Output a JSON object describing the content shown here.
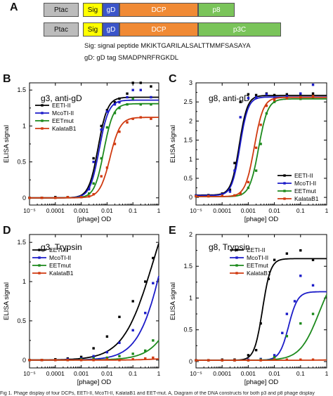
{
  "panelA": {
    "letter": "A",
    "row1": {
      "promoter": "Ptac",
      "sig": "Sig",
      "gd": "gD",
      "dcp": "DCP",
      "fusion": "p8"
    },
    "row2": {
      "promoter": "Ptac",
      "sig": "Sig",
      "gd": "gD",
      "dcp": "DCP",
      "fusion": "p3C"
    },
    "sig_note": "Sig: signal peptide MKIKTGARILALSALTTMMFSASAYA",
    "gd_note": "gD: gD tag SMADPNRFRGKDL",
    "colors": {
      "promoter": "#bcbcbc",
      "sig": "#ffff00",
      "gd": "#3b55c9",
      "dcp": "#f08a35",
      "fusion": "#7ac45a"
    }
  },
  "caption": "Fig 1. Phage display of four DCPs, EETI-II, McoTI-II, KalataB1 and EET-mut. A, Diagram of the DNA constructs for both p3 and p8 phage display",
  "series_colors": {
    "EETI-II": "#000000",
    "McoTI-II": "#1c1cc8",
    "EETmut": "#1d8a1d",
    "KalataB1": "#d03a10"
  },
  "chart_data": [
    {
      "letter": "B",
      "type": "scatter",
      "title": "g3, anti-gD",
      "xlabel": "[phage] OD",
      "ylabel": "ELISA signal",
      "xscale": "log",
      "xlim": [
        1e-05,
        1
      ],
      "ylim": [
        -0.1,
        1.6
      ],
      "xticks": [
        "10⁻⁵",
        "0.0001",
        "0.001",
        "0.01",
        "0.1",
        "1"
      ],
      "yticks": [
        "0",
        "0.5",
        "1",
        "1.5"
      ],
      "ytick_values": [
        0,
        0.5,
        1,
        1.5
      ],
      "legend_position": "top-left",
      "series": [
        {
          "name": "EETI-II",
          "x": [
            1e-05,
            3e-05,
            0.0001,
            0.0003,
            0.001,
            0.002,
            0.003,
            0.006,
            0.01,
            0.02,
            0.03,
            0.06,
            0.1,
            0.2,
            0.5
          ],
          "y": [
            0,
            0,
            0.01,
            0.01,
            0.02,
            0.15,
            0.55,
            1.0,
            1.22,
            1.33,
            1.38,
            1.45,
            1.62,
            1.65,
            1.55
          ],
          "curve": {
            "bottom": 0,
            "top": 1.4,
            "ec50": 0.0045,
            "hill": 2.4
          }
        },
        {
          "name": "McoTI-II",
          "x": [
            1e-05,
            3e-05,
            0.0001,
            0.0003,
            0.001,
            0.002,
            0.003,
            0.006,
            0.01,
            0.02,
            0.03,
            0.06,
            0.1,
            0.2,
            0.5
          ],
          "y": [
            0,
            0,
            0,
            0.01,
            0.02,
            0.12,
            0.5,
            0.95,
            1.2,
            1.3,
            1.33,
            1.4,
            1.5,
            1.5,
            1.4
          ],
          "curve": {
            "bottom": 0,
            "top": 1.36,
            "ec50": 0.005,
            "hill": 2.4
          }
        },
        {
          "name": "EETmut",
          "x": [
            1e-05,
            3e-05,
            0.0001,
            0.0003,
            0.001,
            0.002,
            0.003,
            0.006,
            0.01,
            0.02,
            0.03,
            0.06,
            0.1,
            0.2,
            0.5
          ],
          "y": [
            0,
            0,
            0,
            0.01,
            0.01,
            0.06,
            0.2,
            0.55,
            0.98,
            1.18,
            1.25,
            1.3,
            1.38,
            1.3,
            1.3
          ],
          "curve": {
            "bottom": 0,
            "top": 1.31,
            "ec50": 0.0075,
            "hill": 2.4
          }
        },
        {
          "name": "KalataB1",
          "x": [
            1e-05,
            3e-05,
            0.0001,
            0.0003,
            0.001,
            0.002,
            0.003,
            0.006,
            0.01,
            0.02,
            0.03,
            0.06,
            0.1,
            0.2,
            0.5
          ],
          "y": [
            0,
            0,
            0,
            0.01,
            0.01,
            0.02,
            0.05,
            0.3,
            0.42,
            0.75,
            0.92,
            1.05,
            1.1,
            1.12,
            1.1
          ],
          "curve": {
            "bottom": 0,
            "top": 1.12,
            "ec50": 0.013,
            "hill": 2.2
          }
        }
      ]
    },
    {
      "letter": "C",
      "type": "scatter",
      "title": "g8, anti-gD",
      "xlabel": "[phage] OD",
      "ylabel": "ELISA signal",
      "xscale": "log",
      "xlim": [
        1e-05,
        1
      ],
      "ylim": [
        -0.2,
        3
      ],
      "xticks": [
        "10⁻⁵",
        "0.0001",
        "0.001",
        "0.01",
        "0.1",
        "1"
      ],
      "yticks": [
        "0",
        "0.5",
        "1",
        "1.5",
        "2",
        "2.5",
        "3"
      ],
      "ytick_values": [
        0,
        0.5,
        1,
        1.5,
        2,
        2.5,
        3
      ],
      "legend_position": "bottom-right",
      "series": [
        {
          "name": "EETI-II",
          "x": [
            1e-05,
            3e-05,
            0.0001,
            0.0002,
            0.0003,
            0.0005,
            0.001,
            0.002,
            0.005,
            0.01,
            0.03,
            0.1,
            0.3
          ],
          "y": [
            0.05,
            0.06,
            0.1,
            0.2,
            0.9,
            2.5,
            2.7,
            2.68,
            2.72,
            2.68,
            2.7,
            2.72,
            2.72
          ],
          "curve": {
            "bottom": 0.06,
            "top": 2.67,
            "ec50": 0.00045,
            "hill": 2.8
          }
        },
        {
          "name": "McoTI-II",
          "x": [
            1e-05,
            3e-05,
            0.0001,
            0.0002,
            0.0003,
            0.0005,
            0.001,
            0.002,
            0.005,
            0.01,
            0.03,
            0.1,
            0.3
          ],
          "y": [
            0.05,
            0.05,
            0.08,
            0.15,
            0.7,
            2.1,
            2.6,
            2.62,
            2.7,
            2.6,
            2.65,
            2.72,
            2.95
          ],
          "curve": {
            "bottom": 0.05,
            "top": 2.63,
            "ec50": 0.00048,
            "hill": 2.8
          }
        },
        {
          "name": "EETmut",
          "x": [
            1e-05,
            3e-05,
            0.0001,
            0.0003,
            0.0005,
            0.001,
            0.002,
            0.003,
            0.005,
            0.01,
            0.03,
            0.1,
            0.3
          ],
          "y": [
            0.03,
            0.03,
            0.04,
            0.05,
            0.08,
            0.25,
            0.7,
            1.4,
            2.2,
            2.5,
            2.6,
            2.58,
            2.6
          ],
          "curve": {
            "bottom": 0.02,
            "top": 2.58,
            "ec50": 0.0025,
            "hill": 2.5
          }
        },
        {
          "name": "KalataB1",
          "x": [
            1e-05,
            3e-05,
            0.0001,
            0.0003,
            0.0005,
            0.001,
            0.002,
            0.003,
            0.005,
            0.01,
            0.03,
            0.1,
            0.3
          ],
          "y": [
            0.03,
            0.03,
            0.04,
            0.05,
            0.1,
            0.4,
            1.3,
            1.9,
            2.4,
            2.55,
            2.6,
            2.62,
            2.65
          ],
          "curve": {
            "bottom": 0.02,
            "top": 2.62,
            "ec50": 0.0017,
            "hill": 2.5
          }
        }
      ]
    },
    {
      "letter": "D",
      "type": "scatter",
      "title": "g3, Trypsin",
      "xlabel": "[phage] OD",
      "ylabel": "ELISA signal",
      "xscale": "log",
      "xlim": [
        1e-05,
        1
      ],
      "ylim": [
        -0.1,
        1.6
      ],
      "xticks": [
        "10⁻⁵",
        "0.0001",
        "0.001",
        "0.01",
        "0.1",
        "1"
      ],
      "yticks": [
        "0",
        "0.5",
        "1",
        "1.5"
      ],
      "ytick_values": [
        0,
        0.5,
        1,
        1.5
      ],
      "legend_position": "top-left",
      "series": [
        {
          "name": "EETI-II",
          "x": [
            1e-05,
            3e-05,
            0.0001,
            0.0003,
            0.001,
            0.003,
            0.01,
            0.03,
            0.1,
            0.3,
            0.6
          ],
          "y": [
            0,
            0,
            0.01,
            0.02,
            0.04,
            0.15,
            0.3,
            0.55,
            0.75,
            1.0,
            1.3
          ],
          "curve": {
            "bottom": 0,
            "top": 2.5,
            "ec50": 0.6,
            "hill": 0.75
          }
        },
        {
          "name": "McoTI-II",
          "x": [
            1e-05,
            3e-05,
            0.0001,
            0.0003,
            0.001,
            0.003,
            0.01,
            0.03,
            0.1,
            0.3,
            0.6
          ],
          "y": [
            0,
            0,
            0,
            0.01,
            0.02,
            0.05,
            0.1,
            0.22,
            0.38,
            0.6,
            0.98
          ],
          "curve": {
            "bottom": 0,
            "top": 3.0,
            "ec50": 2.0,
            "hill": 0.85
          }
        },
        {
          "name": "EETmut",
          "x": [
            1e-05,
            3e-05,
            0.0001,
            0.0003,
            0.001,
            0.003,
            0.01,
            0.03,
            0.1,
            0.3,
            0.6
          ],
          "y": [
            0,
            0,
            0,
            0,
            0.01,
            0.02,
            0.03,
            0.05,
            0.08,
            0.12,
            0.25
          ],
          "curve": {
            "bottom": 0,
            "top": 3.0,
            "ec50": 20,
            "hill": 0.8
          }
        },
        {
          "name": "KalataB1",
          "x": [
            1e-05,
            3e-05,
            0.0001,
            0.0003,
            0.001,
            0.003,
            0.01,
            0.03,
            0.1,
            0.3,
            0.6
          ],
          "y": [
            0,
            0,
            0,
            0,
            0,
            0,
            0.01,
            0,
            0.01,
            0.02,
            0.03
          ],
          "curve": {
            "bottom": 0,
            "top": 0.03,
            "ec50": 1.0,
            "hill": 1
          }
        }
      ]
    },
    {
      "letter": "E",
      "type": "scatter",
      "title": "g8, Trypsin",
      "xlabel": "[phage] OD",
      "ylabel": "ELISA signal",
      "xscale": "log",
      "xlim": [
        1e-05,
        1
      ],
      "ylim": [
        -0.1,
        2
      ],
      "xticks": [
        "10⁻⁵",
        "0.0001",
        "0.001",
        "0.01",
        "0.1",
        "1"
      ],
      "yticks": [
        "0",
        "0.5",
        "1",
        "1.5",
        "2"
      ],
      "ytick_values": [
        0,
        0.5,
        1,
        1.5,
        2
      ],
      "legend_position": "top-left",
      "series": [
        {
          "name": "EETI-II",
          "x": [
            1e-05,
            3e-05,
            0.0001,
            0.0003,
            0.001,
            0.002,
            0.003,
            0.006,
            0.01,
            0.03,
            0.1,
            0.3
          ],
          "y": [
            0.02,
            0.02,
            0.03,
            0.03,
            0.1,
            0.18,
            0.6,
            1.3,
            1.6,
            1.7,
            1.75,
            1.6
          ],
          "curve": {
            "bottom": 0.02,
            "top": 1.62,
            "ec50": 0.0035,
            "hill": 2.8
          }
        },
        {
          "name": "McoTI-II",
          "x": [
            1e-05,
            3e-05,
            0.0001,
            0.0003,
            0.001,
            0.003,
            0.01,
            0.02,
            0.03,
            0.06,
            0.1,
            0.3
          ],
          "y": [
            0.02,
            0.02,
            0.02,
            0.02,
            0.03,
            0.04,
            0.1,
            0.45,
            0.75,
            0.95,
            1.35,
            1.2
          ],
          "curve": {
            "bottom": 0.02,
            "top": 1.1,
            "ec50": 0.035,
            "hill": 2.5
          }
        },
        {
          "name": "EETmut",
          "x": [
            1e-05,
            3e-05,
            0.0001,
            0.0003,
            0.001,
            0.003,
            0.01,
            0.03,
            0.1,
            0.3
          ],
          "y": [
            0.02,
            0.02,
            0.02,
            0.02,
            0.02,
            0.03,
            0.07,
            0.4,
            0.6,
            0.75
          ],
          "curve": {
            "bottom": 0.02,
            "top": 1.5,
            "ec50": 0.5,
            "hill": 1.2
          }
        },
        {
          "name": "KalataB1",
          "x": [
            1e-05,
            3e-05,
            0.0001,
            0.0003,
            0.001,
            0.003,
            0.01,
            0.03,
            0.1,
            0.3
          ],
          "y": [
            0.02,
            0.02,
            0.02,
            0.02,
            0.02,
            0.02,
            0.03,
            0.03,
            0.03,
            0.03
          ],
          "curve": {
            "bottom": 0.02,
            "top": 0.03,
            "ec50": 1.0,
            "hill": 1
          }
        }
      ]
    }
  ]
}
